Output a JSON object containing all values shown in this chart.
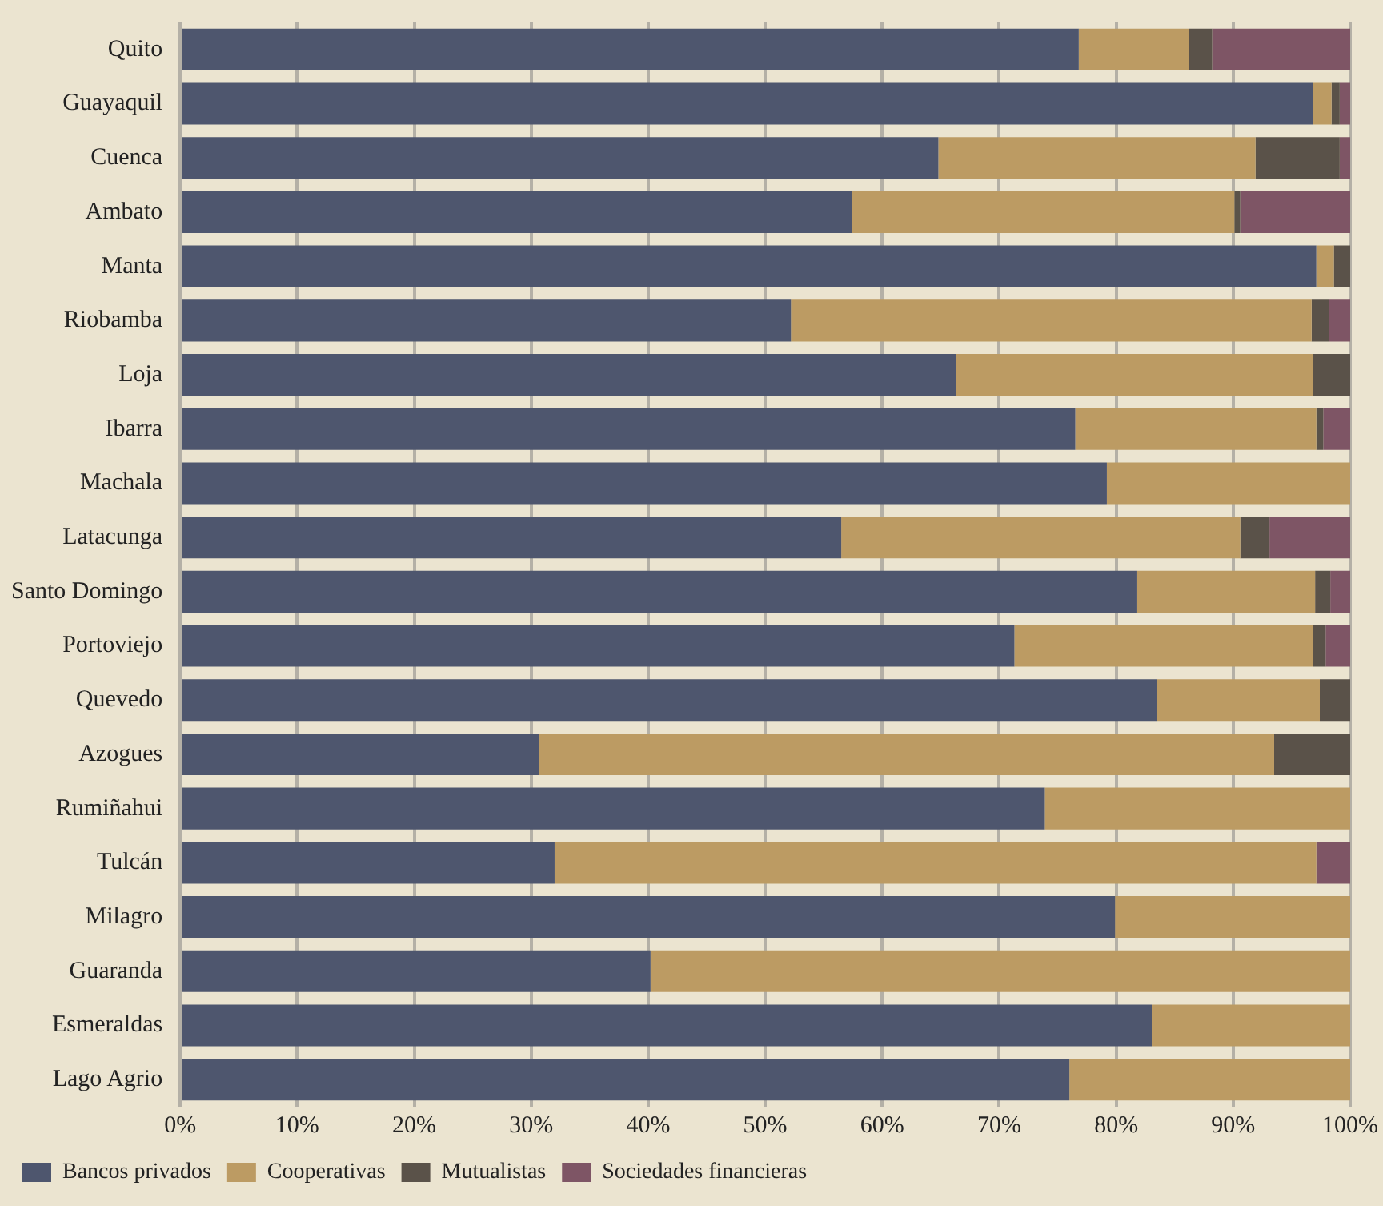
{
  "chart_data": {
    "type": "bar",
    "orientation": "horizontal",
    "stacked": true,
    "categories": [
      "Quito",
      "Guayaquil",
      "Cuenca",
      "Ambato",
      "Manta",
      "Riobamba",
      "Loja",
      "Ibarra",
      "Machala",
      "Latacunga",
      "Santo Domingo",
      "Portoviejo",
      "Quevedo",
      "Azogues",
      "Rumiñahui",
      "Tulcán",
      "Milagro",
      "Guaranda",
      "Esmeraldas",
      "Lago Agrio"
    ],
    "series": [
      {
        "name": "Bancos privados",
        "color": "#4e566e",
        "values": [
          76.8,
          96.8,
          64.8,
          57.4,
          97.1,
          52.2,
          66.3,
          76.5,
          79.2,
          56.5,
          81.8,
          71.3,
          83.5,
          30.7,
          73.9,
          32.0,
          79.9,
          40.2,
          83.1,
          76.0
        ]
      },
      {
        "name": "Cooperativas",
        "color": "#bc9b63",
        "values": [
          9.4,
          1.6,
          27.1,
          32.7,
          1.5,
          44.5,
          30.5,
          20.6,
          20.8,
          34.1,
          15.2,
          25.5,
          13.9,
          62.8,
          26.1,
          65.1,
          20.1,
          59.8,
          16.9,
          24.0
        ]
      },
      {
        "name": "Mutualistas",
        "color": "#5a5249",
        "values": [
          2.0,
          0.7,
          7.2,
          0.5,
          1.4,
          1.5,
          3.2,
          0.6,
          null,
          2.5,
          1.3,
          1.1,
          2.6,
          6.5,
          null,
          null,
          null,
          null,
          null,
          null
        ]
      },
      {
        "name": "Sociedades financieras",
        "color": "#7e5565",
        "values": [
          11.8,
          0.9,
          0.9,
          9.4,
          null,
          1.8,
          null,
          2.3,
          null,
          6.9,
          1.7,
          2.1,
          null,
          null,
          null,
          2.9,
          null,
          null,
          null,
          null
        ]
      }
    ],
    "xlim": [
      0,
      100
    ],
    "xticks": [
      {
        "value": 0,
        "label": "0%"
      },
      {
        "value": 10,
        "label": "10%"
      },
      {
        "value": 20,
        "label": "20%"
      },
      {
        "value": 30,
        "label": "30%"
      },
      {
        "value": 40,
        "label": "40%"
      },
      {
        "value": 50,
        "label": "50%"
      },
      {
        "value": 60,
        "label": "60%"
      },
      {
        "value": 70,
        "label": "70%"
      },
      {
        "value": 80,
        "label": "80%"
      },
      {
        "value": 90,
        "label": "90%"
      },
      {
        "value": 100,
        "label": "100%"
      }
    ],
    "grid": "x",
    "legend": "bottom left"
  }
}
